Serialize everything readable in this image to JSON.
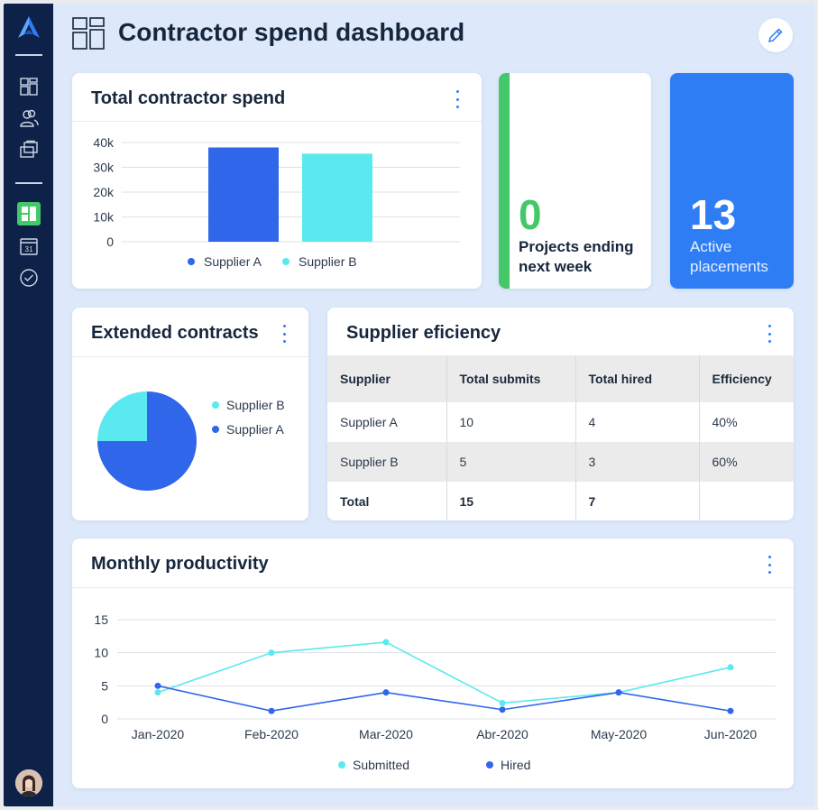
{
  "header": {
    "title": "Contractor spend dashboard"
  },
  "sidebar": {
    "icons": [
      "logo-icon",
      "dashboard-grid-icon",
      "people-icon",
      "briefcase-icon",
      "layout-icon",
      "calendar-icon",
      "check-circle-icon"
    ],
    "calendar_day": "31"
  },
  "colors": {
    "sidebar": "#0d2149",
    "background": "#dde9fb",
    "supplier_a": "#2f66ea",
    "supplier_b": "#5ae9ee",
    "green": "#45c86a",
    "blue_card": "#2f7df5"
  },
  "total_spend": {
    "title": "Total contractor spend",
    "chart_data": {
      "type": "bar",
      "categories": [
        "Supplier A",
        "Supplier B"
      ],
      "values": [
        38000,
        35500
      ],
      "yticks": [
        "40k",
        "30k",
        "20k",
        "10k",
        "0"
      ],
      "ylim": [
        0,
        40000
      ],
      "legend": [
        "Supplier A",
        "Supplier B"
      ]
    }
  },
  "kpi_projects": {
    "value": "0",
    "label_line1": "Projects ending",
    "label_line2": "next week"
  },
  "kpi_placements": {
    "value": "13",
    "label_line1": "Active",
    "label_line2": "placements"
  },
  "extended": {
    "title": "Extended contracts",
    "chart_data": {
      "type": "pie",
      "labels": [
        "Supplier B",
        "Supplier A"
      ],
      "values": [
        25,
        75
      ]
    }
  },
  "efficiency": {
    "title": "Supplier eficiency",
    "columns": [
      "Supplier",
      "Total submits",
      "Total hired",
      "Efficiency"
    ],
    "rows": [
      [
        "Supplier A",
        "10",
        "4",
        "40%"
      ],
      [
        "Supplier B",
        "5",
        "3",
        "60%"
      ],
      [
        "Total",
        "15",
        "7",
        ""
      ]
    ]
  },
  "productivity": {
    "title": "Monthly productivity",
    "chart_data": {
      "type": "line",
      "categories": [
        "Jan-2020",
        "Feb-2020",
        "Mar-2020",
        "Abr-2020",
        "May-2020",
        "Jun-2020"
      ],
      "yticks": [
        "15",
        "10",
        "5",
        "0"
      ],
      "ylim": [
        0,
        15
      ],
      "series": [
        {
          "name": "Submitted",
          "values": [
            4,
            10,
            11.6,
            2.4,
            4,
            7.8
          ]
        },
        {
          "name": "Hired",
          "values": [
            5,
            1.2,
            4,
            1.4,
            4,
            1.2
          ]
        }
      ]
    }
  }
}
